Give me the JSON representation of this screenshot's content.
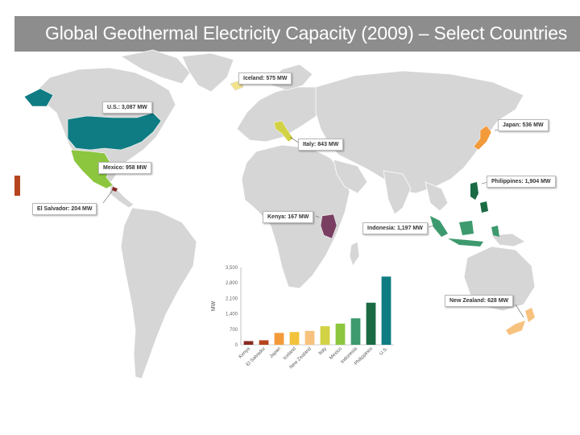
{
  "title": "Global Geothermal Electricity Capacity (2009) – Select Countries",
  "colors": {
    "land": "#d6d6d6",
    "ocean": "#ffffff",
    "accent": "#b5441e",
    "us": "#0f7c83",
    "mexico": "#8cc63f",
    "iceland": "#f2e38b",
    "italy": "#d2d245",
    "japan": "#f39a3a",
    "philippines": "#1a6a44",
    "indonesia": "#3d9a6e",
    "kenya": "#7a3e63",
    "newzealand": "#f7c27e",
    "elsalvador": "#8a2a22"
  },
  "callouts": {
    "us": "U.S.: 3,087 MW",
    "iceland": "Iceland: 575 MW",
    "japan": "Japan: 536 MW",
    "italy": "Italy: 843 MW",
    "mexico": "Mexico: 958 MW",
    "philippines": "Philippines: 1,904 MW",
    "elsalvador": "El Salvador: 204 MW",
    "kenya": "Kenya: 167 MW",
    "indonesia": "Indonesia: 1,197 MW",
    "newzealand": "New Zealand: 628 MW"
  },
  "chart_data": {
    "type": "bar",
    "ylabel": "MW",
    "ylim": [
      0,
      3500
    ],
    "yticks": [
      "0",
      "700",
      "1,400",
      "2,100",
      "2,800",
      "3,500"
    ],
    "categories": [
      "Kenya",
      "El Salvador",
      "Japan",
      "Iceland",
      "New Zealand",
      "Italy",
      "Mexico",
      "Indonesia",
      "Philippines",
      "U.S."
    ],
    "values": [
      167,
      204,
      536,
      575,
      628,
      843,
      958,
      1197,
      1904,
      3087
    ],
    "colors": [
      "#8a2a22",
      "#b5441e",
      "#f39a3a",
      "#f2c23a",
      "#f7c27e",
      "#d2d245",
      "#8cc63f",
      "#3d9a6e",
      "#1a6a44",
      "#0f7c83"
    ]
  }
}
